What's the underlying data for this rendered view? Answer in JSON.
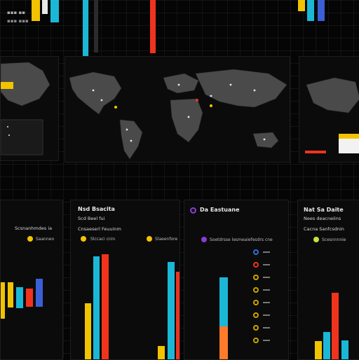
{
  "colors": {
    "yellow": "#f2c300",
    "cyan": "#1bb7d6",
    "red": "#f0331d",
    "blue": "#3a5fd6",
    "orange": "#ff7a2a",
    "purple": "#8a3bd6"
  },
  "panels": {
    "left_header": {
      "title": "",
      "subtitle": "",
      "legend": ""
    },
    "center_left": {
      "title": "Nsd Bsacita",
      "subtitle": "Scd Beel fui",
      "subtitle2": "Cnsaeserl Feuuinm",
      "legend1": "Slccaci cnin",
      "legend2": "Slaeenfore"
    },
    "center_right": {
      "title": "Da Eastuane",
      "legend1": "Soetdrsse lesmeaiefesdrs cne"
    },
    "right": {
      "title": "Nat Sa Daite",
      "subtitle": "Nees deacneiins",
      "subtitle2": "Cacna Sanfcsdnin",
      "legend1": "Scesnnnnie"
    },
    "left_mid": {
      "legend1": "Scsnanhmdes ia",
      "legend2": "Saanneo"
    }
  },
  "icons": {
    "list_center": [
      "ring-icon",
      "ring-icon",
      "ring-icon",
      "ring-icon",
      "ring-icon",
      "ring-icon",
      "ring-icon",
      "ring-icon"
    ],
    "list_left": [
      "ring-icon",
      "ring-icon",
      "ring-icon"
    ]
  }
}
